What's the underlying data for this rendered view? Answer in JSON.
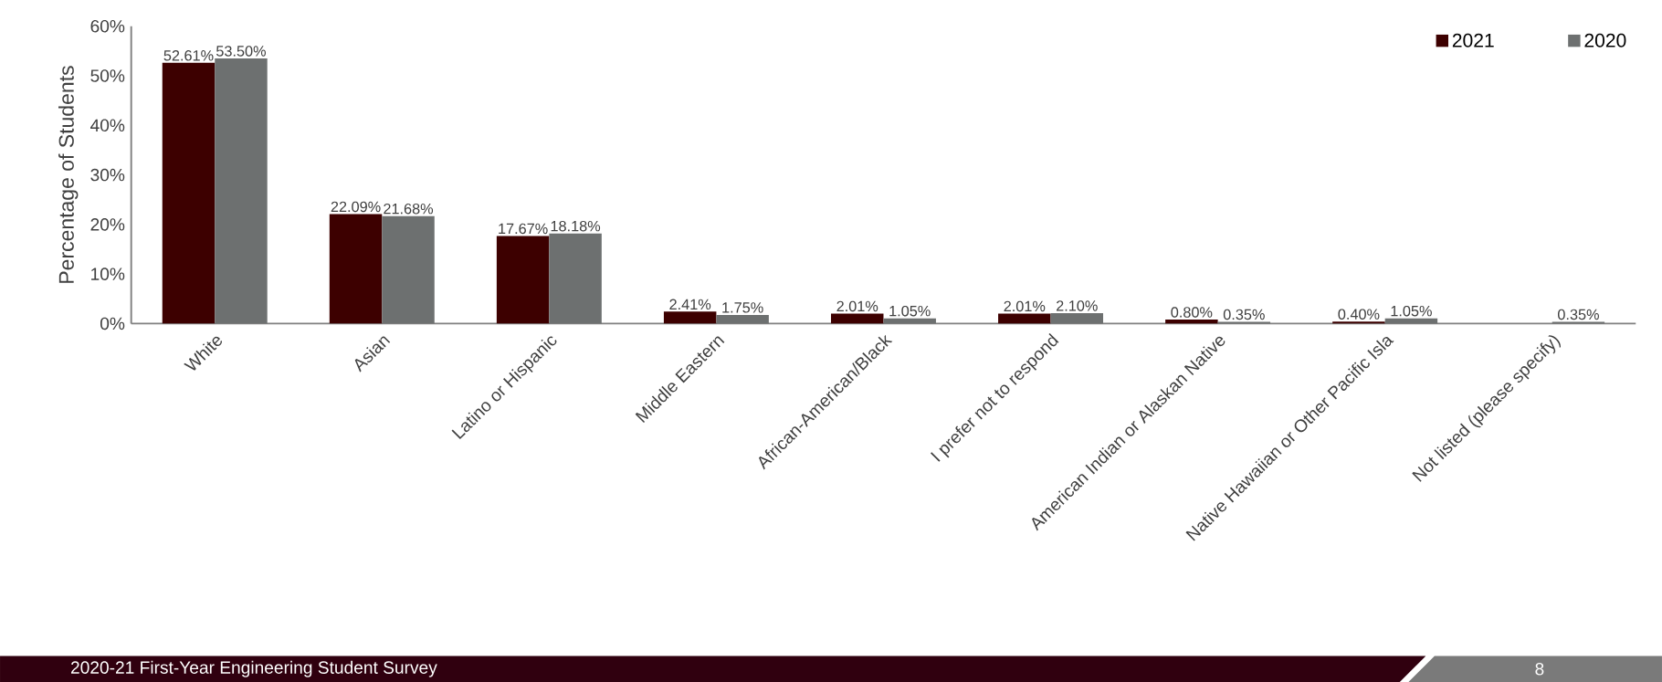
{
  "chart_data": {
    "type": "bar",
    "ylabel": "Percentage of Students",
    "categories": [
      "White",
      "Asian",
      "Latino or Hispanic",
      "Middle Eastern",
      "African-American/Black",
      "I prefer not to respond",
      "American Indian or Alaskan Native",
      "Native Hawaiian or Other Pacific Isla",
      "Not listed (please specify)"
    ],
    "series": [
      {
        "name": "2021",
        "color": "#3d0000",
        "values": [
          52.61,
          22.09,
          17.67,
          2.41,
          2.01,
          2.01,
          0.8,
          0.4,
          null
        ],
        "value_labels": [
          "52.61%",
          "22.09%",
          "17.67%",
          "2.41%",
          "2.01%",
          "2.01%",
          "0.80%",
          "0.40%",
          null
        ]
      },
      {
        "name": "2020",
        "color": "#6d7070",
        "values": [
          53.5,
          21.68,
          18.18,
          1.75,
          1.05,
          2.1,
          0.35,
          1.05,
          0.35
        ],
        "value_labels": [
          "53.50%",
          "21.68%",
          "18.18%",
          "1.75%",
          "1.05%",
          "2.10%",
          "0.35%",
          "1.05%",
          "0.35%"
        ]
      }
    ],
    "ylim": [
      0,
      60
    ],
    "yticks": [
      {
        "value": 0,
        "label": "0%"
      },
      {
        "value": 10,
        "label": "10%"
      },
      {
        "value": 20,
        "label": "20%"
      },
      {
        "value": 30,
        "label": "30%"
      },
      {
        "value": 40,
        "label": "40%"
      },
      {
        "value": 50,
        "label": "50%"
      },
      {
        "value": 60,
        "label": "60%"
      }
    ],
    "legend": "top right",
    "annotations": [
      "2020-21 First-Year Engineering Student Survey",
      "8"
    ]
  }
}
